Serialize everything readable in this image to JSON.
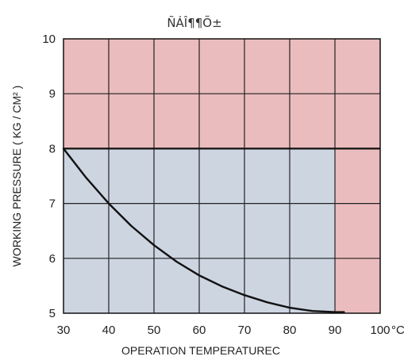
{
  "chart_data": {
    "type": "line",
    "title": "ÑÁÎ¶¶Õ±",
    "xlabel": "OPERATION TEMPERATUREC",
    "ylabel": "WORKING PRESSURE  ( KG / CM² )",
    "xlim": [
      30,
      100
    ],
    "ylim": [
      5,
      10
    ],
    "x_ticks": [
      "30",
      "40",
      "50",
      "60",
      "70",
      "80",
      "90",
      "100"
    ],
    "x_unit": "°C",
    "y_ticks": [
      "5",
      "6",
      "7",
      "8",
      "9",
      "10"
    ],
    "grid": true,
    "regions": [
      {
        "name": "over-limit",
        "color": "#ebbcbd",
        "description": "pressure above 8 or temperature above 90"
      },
      {
        "name": "allowable",
        "color": "#cdd5e1",
        "description": "x 30–90, y 5–8"
      }
    ],
    "series": [
      {
        "color": "#111111",
        "points": [
          [
            30,
            8.0
          ],
          [
            35,
            7.47
          ],
          [
            40,
            7.0
          ],
          [
            45,
            6.59
          ],
          [
            50,
            6.24
          ],
          [
            55,
            5.94
          ],
          [
            60,
            5.69
          ],
          [
            65,
            5.49
          ],
          [
            70,
            5.33
          ],
          [
            75,
            5.2
          ],
          [
            80,
            5.1
          ],
          [
            85,
            5.04
          ],
          [
            90,
            5.02
          ],
          [
            92,
            5.02
          ]
        ]
      }
    ],
    "limit_line": {
      "y": 8,
      "color": "#111111"
    }
  }
}
